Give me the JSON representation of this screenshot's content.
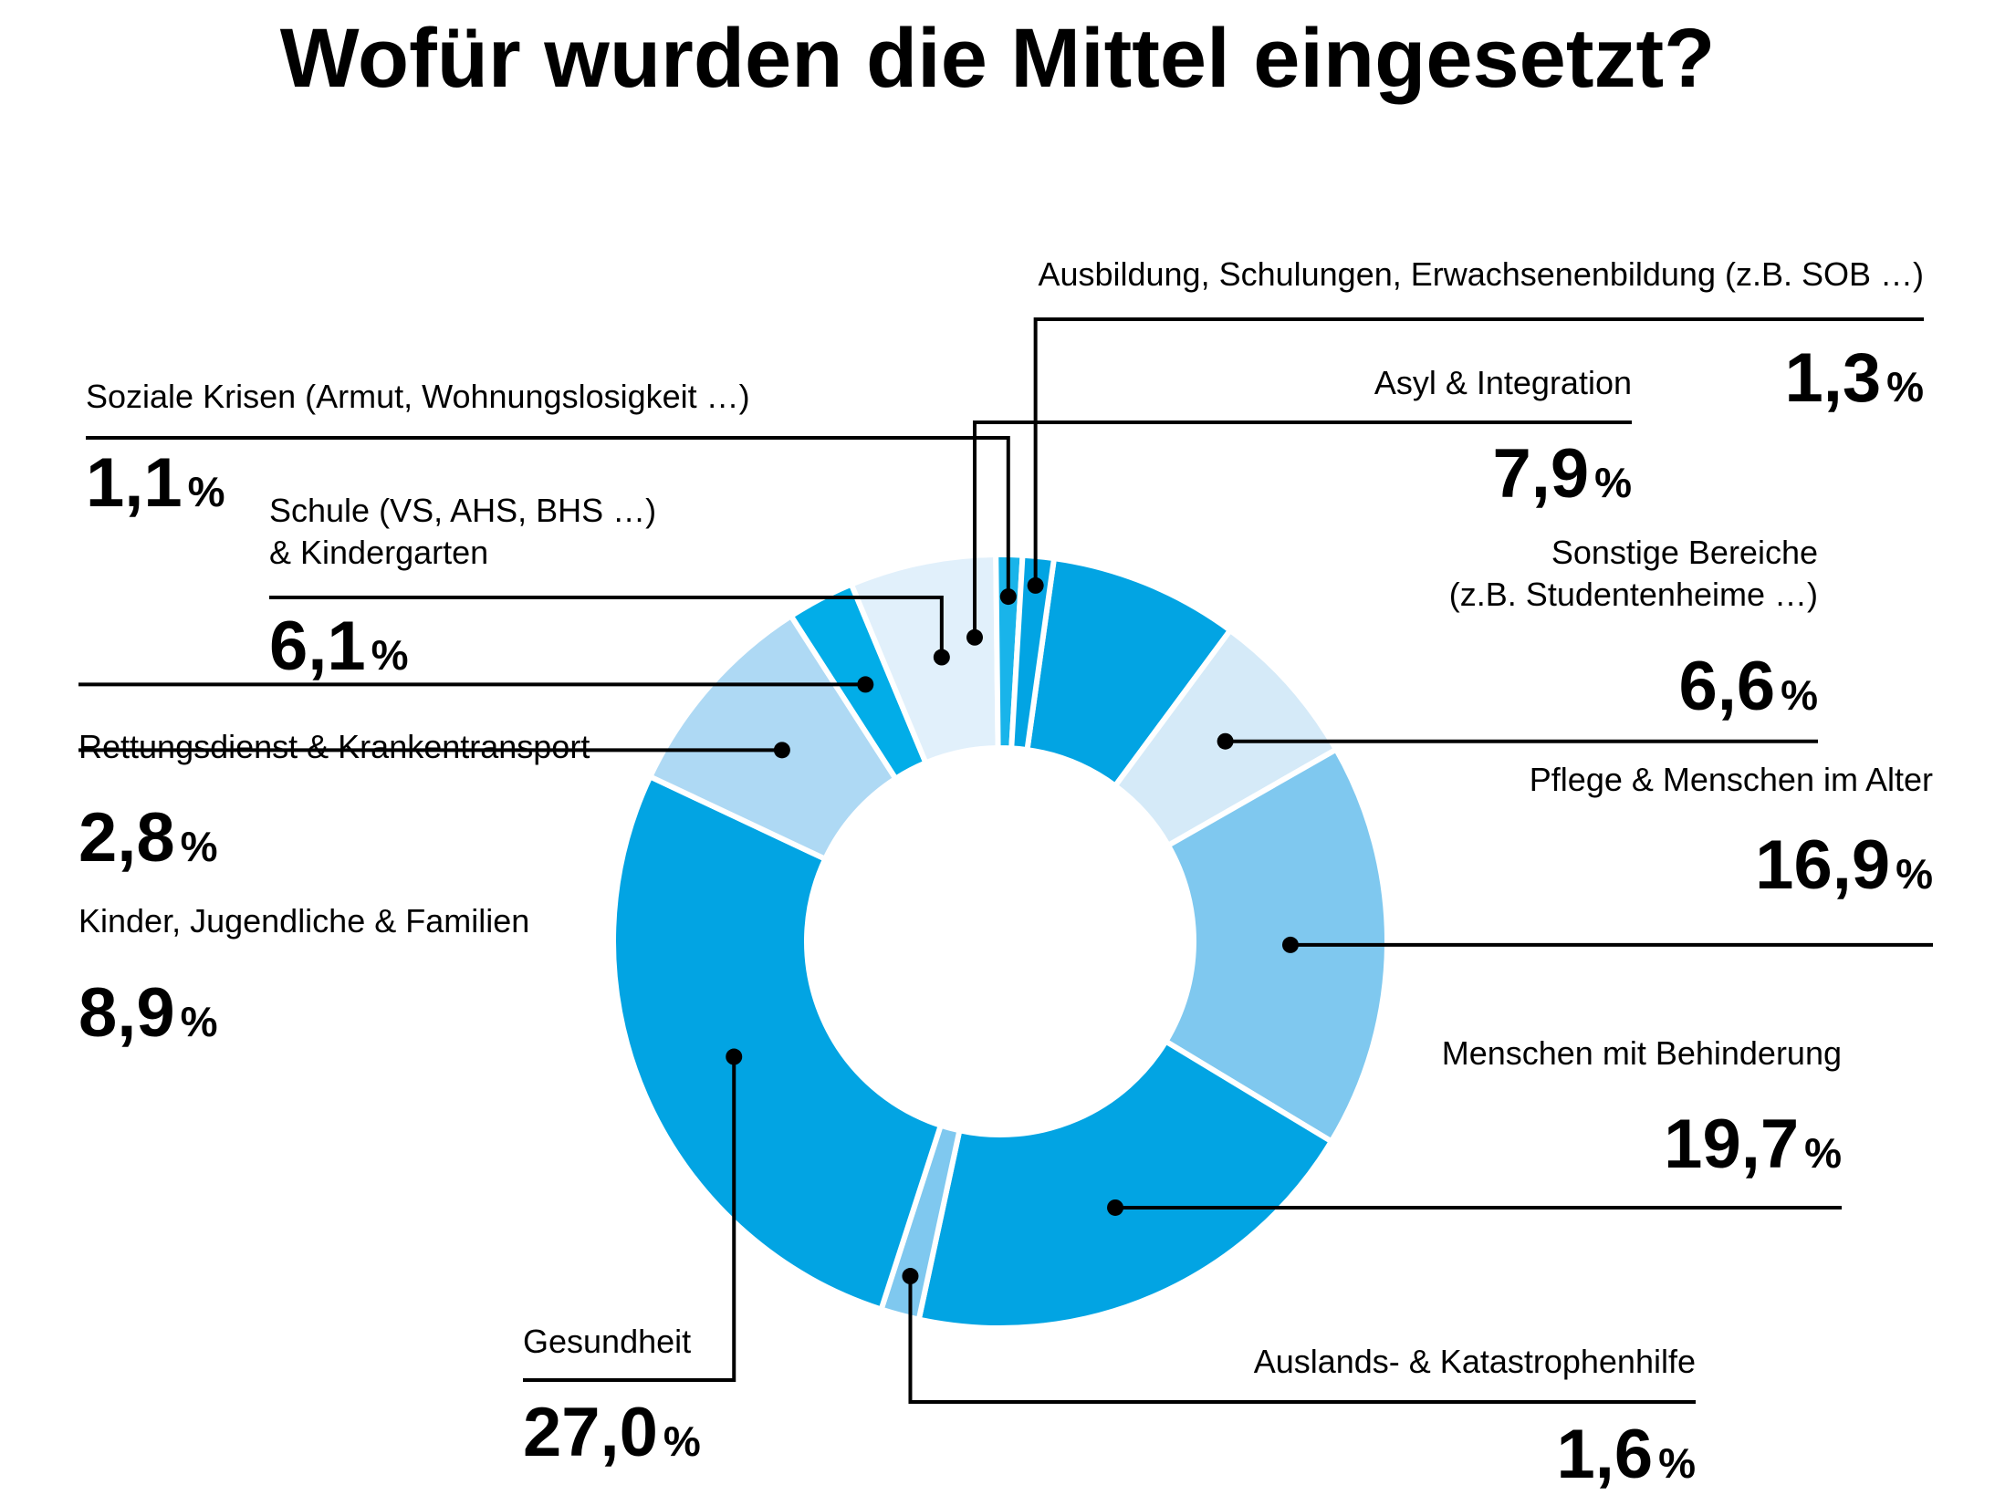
{
  "chart_data": {
    "type": "pie",
    "donut": true,
    "title": "Wofür wurden die Mittel eingesetzt?",
    "percent_sign": "%",
    "slices": [
      {
        "id": "asyl",
        "label_lines": [
          "Asyl & Integration"
        ],
        "value_text": "7,9",
        "value": 7.9,
        "color": "#02a4e3"
      },
      {
        "id": "sonstige",
        "label_lines": [
          "Sonstige Bereiche",
          "(z.B. Studentenheime …)"
        ],
        "value_text": "6,6",
        "value": 6.6,
        "color": "#d5eaf8"
      },
      {
        "id": "pflege",
        "label_lines": [
          "Pflege & Menschen im Alter"
        ],
        "value_text": "16,9",
        "value": 16.9,
        "color": "#7fc8ef"
      },
      {
        "id": "behinderung",
        "label_lines": [
          "Menschen mit Behinderung"
        ],
        "value_text": "19,7",
        "value": 19.7,
        "color": "#02a4e3"
      },
      {
        "id": "ausland",
        "label_lines": [
          "Auslands- & Katastrophenhilfe"
        ],
        "value_text": "1,6",
        "value": 1.6,
        "color": "#7fc8ef"
      },
      {
        "id": "gesundheit",
        "label_lines": [
          "Gesundheit"
        ],
        "value_text": "27,0",
        "value": 27.0,
        "color": "#02a4e3"
      },
      {
        "id": "kinder",
        "label_lines": [
          "Kinder, Jugendliche & Familien"
        ],
        "value_text": "8,9",
        "value": 8.9,
        "color": "#aed9f4"
      },
      {
        "id": "rettung",
        "label_lines": [
          "Rettungsdienst & Krankentransport"
        ],
        "value_text": "2,8",
        "value": 2.8,
        "color": "#02ade8"
      },
      {
        "id": "schule",
        "label_lines": [
          "Schule (VS, AHS, BHS …)",
          "& Kindergarten"
        ],
        "value_text": "6,1",
        "value": 6.1,
        "color": "#e1f0fb"
      },
      {
        "id": "soziale",
        "label_lines": [
          "Soziale Krisen (Armut, Wohnungslosigkeit …)"
        ],
        "value_text": "1,1",
        "value": 1.1,
        "color": "#19b4ea"
      },
      {
        "id": "ausbildung",
        "label_lines": [
          "Ausbildung, Schulungen, Erwachsenenbildung (z.B. SOB …)"
        ],
        "value_text": "1,3",
        "value": 1.3,
        "color": "#02a4e3"
      }
    ]
  }
}
